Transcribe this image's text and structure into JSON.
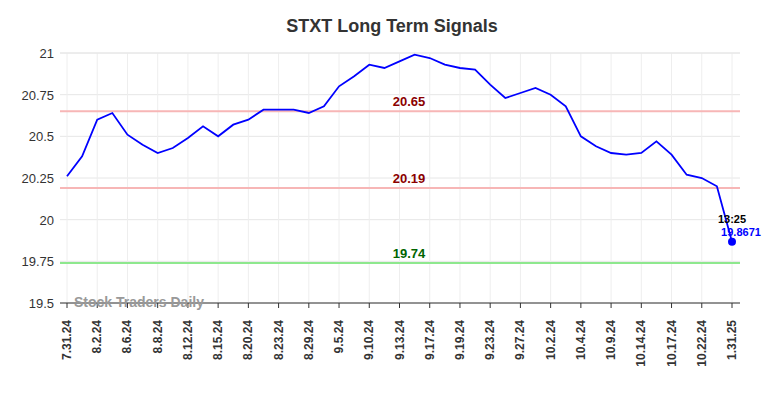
{
  "chart_data": {
    "type": "line",
    "title": "STXT Long Term Signals",
    "watermark": "Stock Traders Daily",
    "categories": [
      "7.31.24",
      null,
      "8.2.24",
      null,
      "8.6.24",
      null,
      "8.8.24",
      null,
      "8.12.24",
      null,
      "8.15.24",
      null,
      "8.20.24",
      null,
      "8.23.24",
      null,
      "8.29.24",
      null,
      "9.5.24",
      null,
      "9.10.24",
      null,
      "9.13.24",
      null,
      "9.17.24",
      null,
      "9.19.24",
      null,
      "9.23.24",
      null,
      "9.27.24",
      null,
      "10.2.24",
      null,
      "10.4.24",
      null,
      "10.9.24",
      null,
      "10.14.24",
      null,
      "10.17.24",
      null,
      "10.22.24",
      null,
      "1.31.25"
    ],
    "values": [
      20.26,
      20.38,
      20.6,
      20.64,
      20.51,
      20.45,
      20.4,
      20.43,
      20.49,
      20.56,
      20.5,
      20.57,
      20.6,
      20.66,
      20.66,
      20.66,
      20.64,
      20.68,
      20.8,
      20.86,
      20.93,
      20.91,
      20.95,
      20.99,
      20.97,
      20.93,
      20.91,
      20.9,
      20.81,
      20.73,
      20.76,
      20.79,
      20.75,
      20.68,
      20.5,
      20.44,
      20.4,
      20.39,
      20.4,
      20.47,
      20.39,
      20.27,
      20.25,
      20.2,
      19.8671
    ],
    "color": "#0000ff",
    "ylim": [
      19.5,
      21
    ],
    "yticks": [
      19.5,
      19.75,
      20,
      20.25,
      20.5,
      20.75,
      21
    ],
    "grid": true,
    "reference_lines": [
      {
        "value": 20.65,
        "label": "20.65",
        "color": "#f7b6b6",
        "label_color": "#8b0000"
      },
      {
        "value": 20.19,
        "label": "20.19",
        "color": "#f7b6b6",
        "label_color": "#8b0000"
      },
      {
        "value": 19.74,
        "label": "19.74",
        "color": "#8ee88e",
        "label_color": "#006400"
      }
    ],
    "end_label": {
      "text": "13:25"
    }
  }
}
